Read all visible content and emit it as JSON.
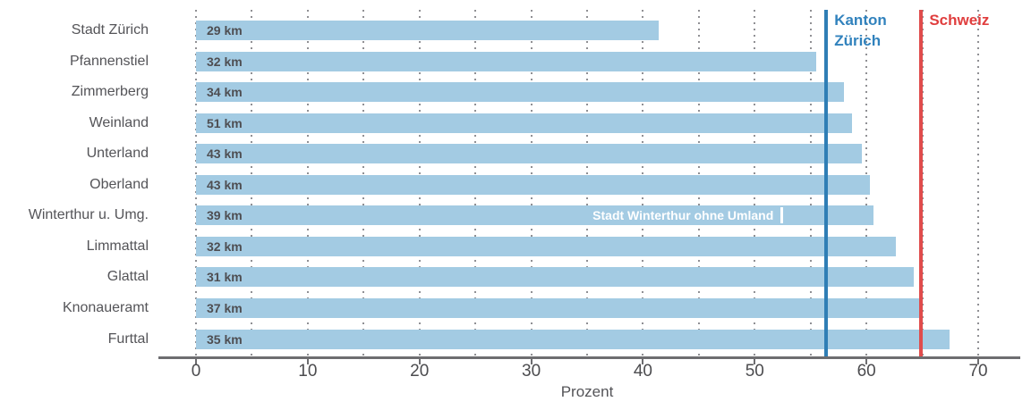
{
  "chart_data": {
    "type": "bar",
    "orientation": "horizontal",
    "xlabel": "Prozent",
    "xlim": [
      0,
      70
    ],
    "x_major_ticks": [
      0,
      10,
      20,
      30,
      40,
      50,
      60,
      70
    ],
    "x_minor_grid_step": 5,
    "grid": "dotted-vertical",
    "categories": [
      "Stadt Zürich",
      "Pfannenstiel",
      "Zimmerberg",
      "Weinland",
      "Unterland",
      "Oberland",
      "Winterthur u. Umg.",
      "Limmattal",
      "Glattal",
      "Knonaueramt",
      "Furttal"
    ],
    "values": [
      41.4,
      55.5,
      58.0,
      58.7,
      59.6,
      60.3,
      60.6,
      62.6,
      64.2,
      64.7,
      67.4
    ],
    "bar_labels": [
      "29 km",
      "32 km",
      "34 km",
      "51 km",
      "43 km",
      "43 km",
      "39 km",
      "32 km",
      "31 km",
      "37 km",
      "35 km"
    ],
    "bar_color": "#a3cbe3",
    "annotation": {
      "row_index": 6,
      "label": "Stadt Winterthur ohne Umland",
      "value": 52.4,
      "color": "#ffffff"
    },
    "reference_lines": [
      {
        "id": "kanton-zuerich",
        "label_lines": [
          "Kanton",
          "Zürich"
        ],
        "value": 56.4,
        "line_color": "#2f7eb5",
        "text_color": "#3182bd"
      },
      {
        "id": "schweiz",
        "label_lines": [
          "Schweiz"
        ],
        "value": 64.9,
        "line_color": "#e04c4c",
        "text_color": "#e03e3e"
      }
    ]
  }
}
